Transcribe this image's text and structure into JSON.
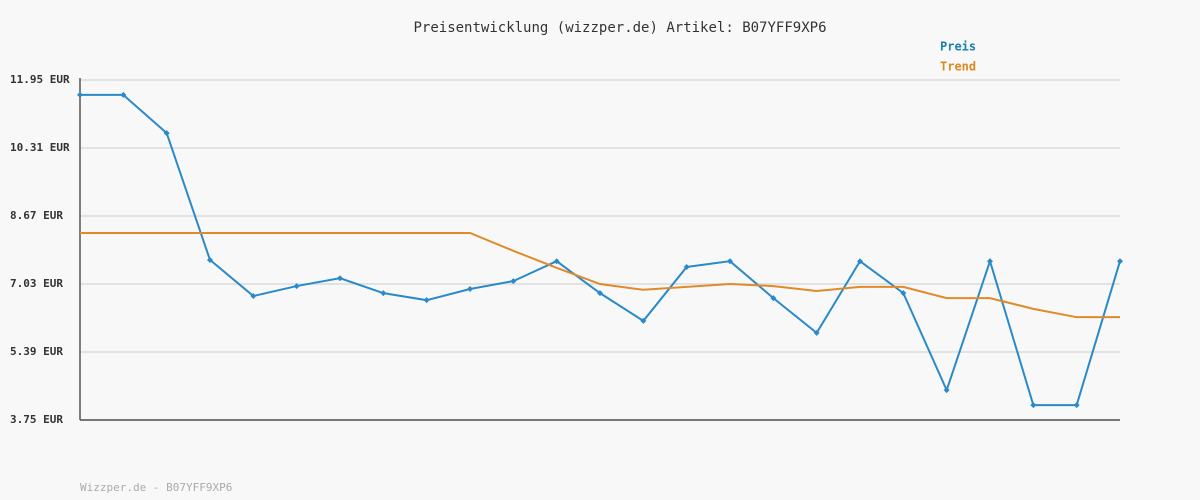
{
  "chart_data": {
    "type": "line",
    "title": "Preisentwicklung (wizzper.de) Artikel: B07YFF9XP6",
    "footer": "Wizzper.de - B07YFF9XP6",
    "categories": [
      null,
      null,
      null,
      null,
      null,
      null,
      null,
      null,
      null,
      null,
      null,
      null,
      null,
      null,
      null,
      null,
      null,
      null,
      null,
      null,
      null,
      null,
      null,
      null,
      null
    ],
    "series": [
      {
        "name": "Preis",
        "color": "#2a8ac8",
        "label_color": "#1a7fa8",
        "markers": true,
        "values": [
          11.59,
          11.59,
          10.67,
          7.61,
          6.74,
          6.98,
          7.17,
          6.81,
          6.64,
          6.91,
          7.1,
          7.58,
          6.81,
          6.14,
          7.44,
          7.58,
          6.69,
          5.85,
          7.58,
          6.81,
          4.47,
          7.58,
          4.11,
          4.11,
          7.58
        ]
      },
      {
        "name": "Trend",
        "color": "#e08a2a",
        "label_color": "#d98a1e",
        "markers": false,
        "values": [
          8.26,
          8.26,
          8.26,
          8.26,
          8.26,
          8.26,
          8.26,
          8.26,
          8.26,
          8.26,
          7.83,
          7.42,
          7.03,
          6.89,
          6.96,
          7.03,
          6.98,
          6.86,
          6.96,
          6.96,
          6.69,
          6.69,
          6.43,
          6.23,
          6.23
        ]
      }
    ],
    "ylim": [
      3.75,
      11.95
    ],
    "yticks": [
      {
        "value": 3.75,
        "label": "3.75 EUR"
      },
      {
        "value": 5.39,
        "label": "5.39 EUR"
      },
      {
        "value": 7.03,
        "label": "7.03 EUR"
      },
      {
        "value": 8.67,
        "label": "8.67 EUR"
      },
      {
        "value": 10.31,
        "label": "10.31 EUR"
      },
      {
        "value": 11.95,
        "label": "11.95 EUR"
      }
    ],
    "grid": true,
    "legend": "top-right"
  }
}
